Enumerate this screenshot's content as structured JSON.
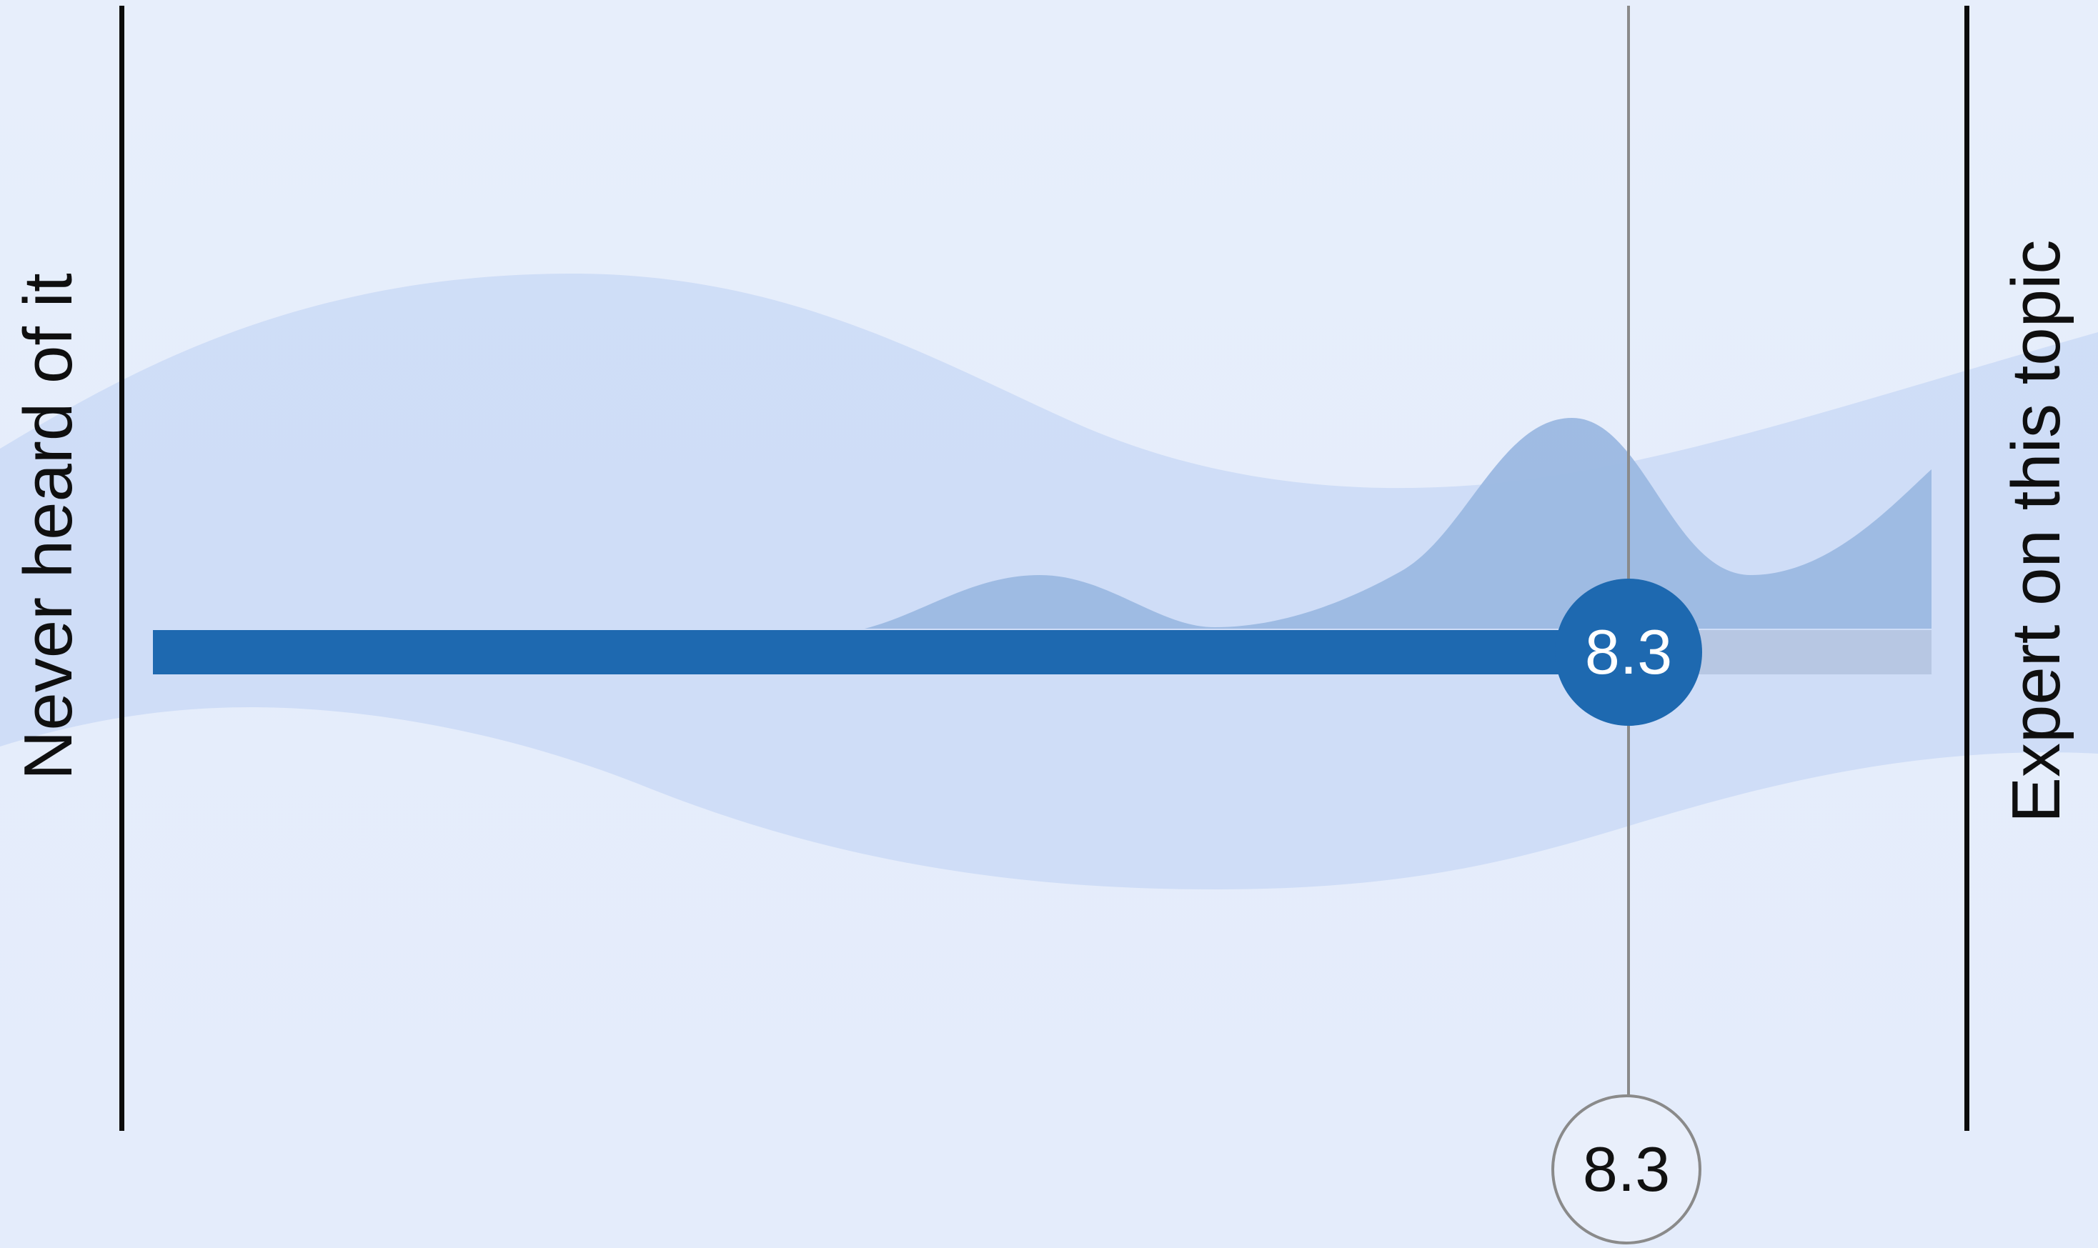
{
  "scale": {
    "min_label": "Never heard of it",
    "max_label": "Expert on this topic",
    "selected_value": "8.3",
    "readout_value": "8.3"
  },
  "colors": {
    "background": "#e6eefb",
    "band": "#cddcf7",
    "distribution": "#9bb8e2",
    "track_fill": "#1e69b0",
    "track_rest": "#b7c7e3",
    "endpoint_lines": "#0b0b0b",
    "guide_line": "#8a8a8a"
  },
  "icons": {
    "thumb": "circle-handle",
    "readout": "circle-outline"
  }
}
